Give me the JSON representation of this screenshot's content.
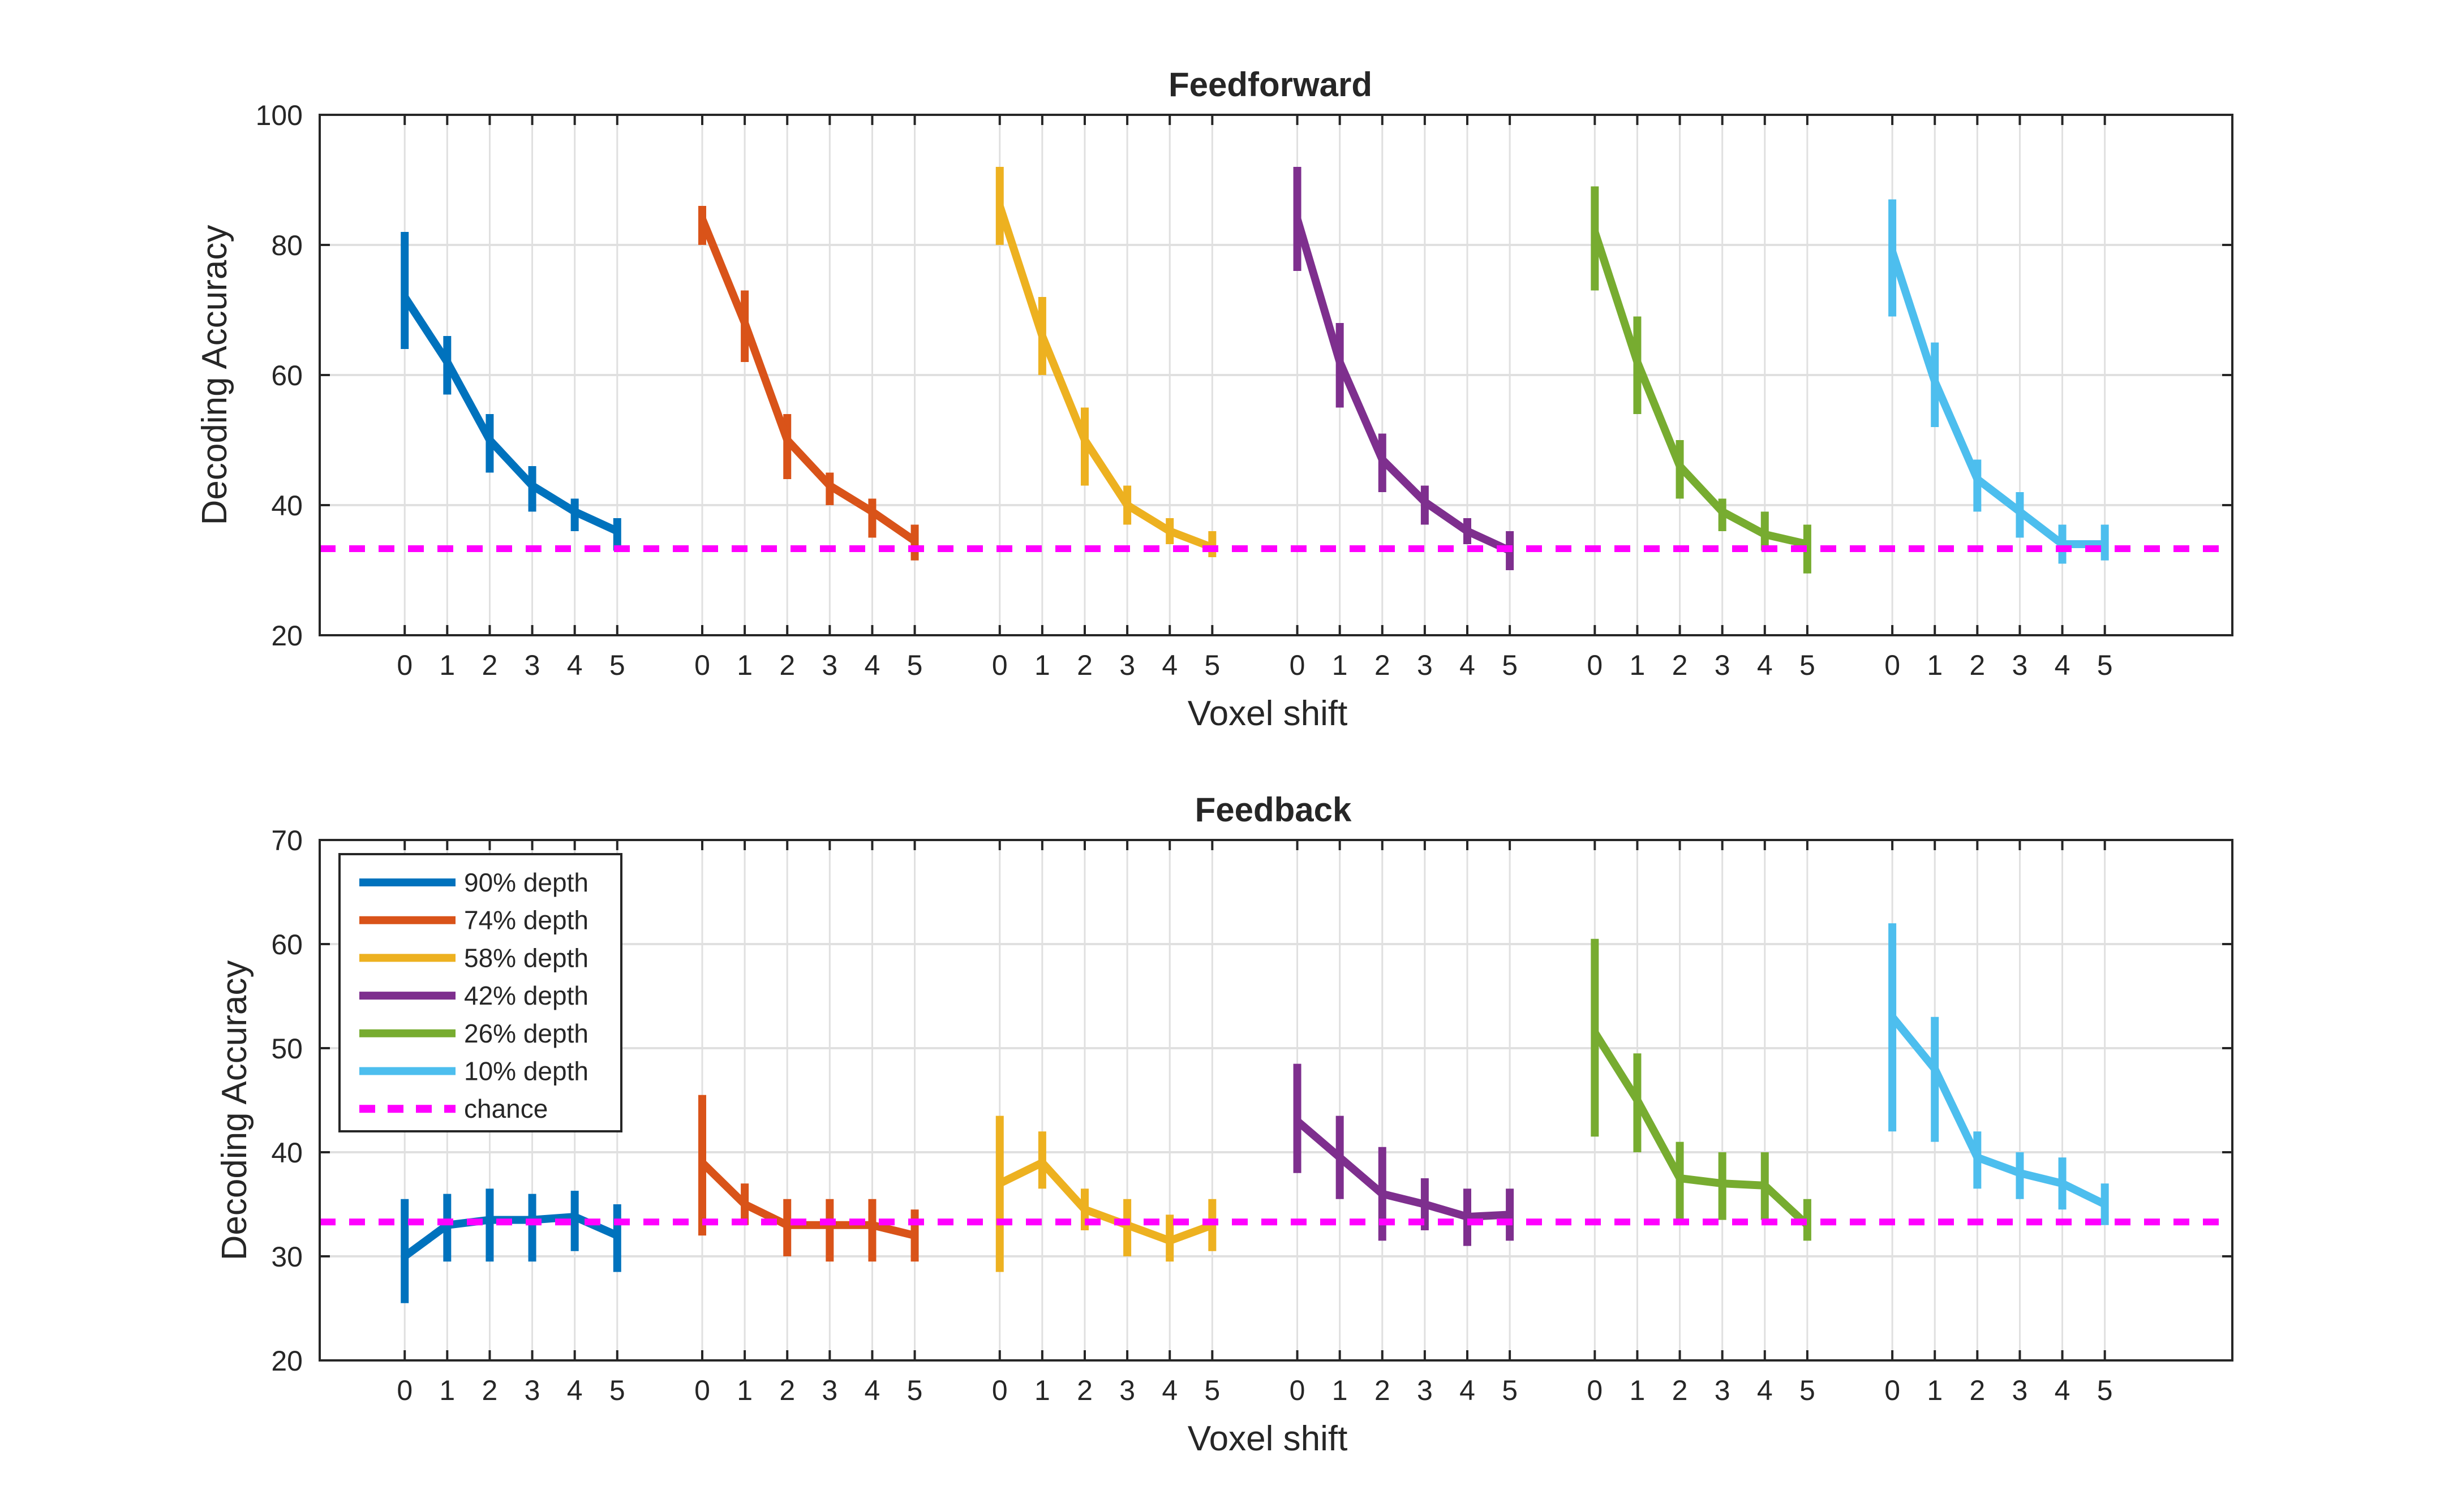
{
  "legend": {
    "placement": "top-left (bottom panel)",
    "entries": [
      {
        "label": "90% depth",
        "color": "#0072BD"
      },
      {
        "label": "74% depth",
        "color": "#D95319"
      },
      {
        "label": "58% depth",
        "color": "#EDB120"
      },
      {
        "label": "42% depth",
        "color": "#7E2F8E"
      },
      {
        "label": "26% depth",
        "color": "#77AC30"
      },
      {
        "label": "10% depth",
        "color": "#4DBEEE"
      },
      {
        "label": "chance",
        "color": "#FF00FF",
        "style": "dashed"
      }
    ]
  },
  "chart_data": [
    {
      "type": "line",
      "title": "Feedforward",
      "xlabel": "Voxel shift",
      "ylabel": "Decoding Accuracy",
      "ylim": [
        20,
        100
      ],
      "yticks": [
        "20",
        "40",
        "60",
        "80",
        "100"
      ],
      "xtick_labels": [
        "0",
        "1",
        "2",
        "3",
        "4",
        "5"
      ],
      "grid": true,
      "chance": 33.3,
      "series": [
        {
          "name": "90% depth",
          "mean": [
            72,
            62,
            50,
            43,
            39,
            36
          ],
          "lower": [
            64,
            57,
            45,
            39,
            36,
            33
          ],
          "upper": [
            82,
            66,
            54,
            46,
            41,
            38
          ]
        },
        {
          "name": "74% depth",
          "mean": [
            84,
            68,
            50,
            43,
            39,
            34.5
          ],
          "lower": [
            80,
            62,
            44,
            40,
            35,
            31.5
          ],
          "upper": [
            86,
            73,
            54,
            45,
            41,
            37
          ]
        },
        {
          "name": "58% depth",
          "mean": [
            86,
            66,
            50,
            40,
            36,
            33.5
          ],
          "lower": [
            80,
            60,
            43,
            37,
            34,
            32
          ],
          "upper": [
            92,
            72,
            55,
            43,
            38,
            36
          ]
        },
        {
          "name": "42% depth",
          "mean": [
            84,
            62,
            47,
            40.5,
            36,
            33
          ],
          "lower": [
            76,
            55,
            42,
            37,
            34,
            30
          ],
          "upper": [
            92,
            68,
            51,
            43,
            38,
            36
          ]
        },
        {
          "name": "26% depth",
          "mean": [
            82,
            62,
            46,
            39,
            35.5,
            34
          ],
          "lower": [
            73,
            54,
            41,
            36,
            33,
            29.5
          ],
          "upper": [
            89,
            69,
            50,
            41,
            39,
            37
          ]
        },
        {
          "name": "10% depth",
          "mean": [
            79,
            59,
            44,
            39,
            34,
            34
          ],
          "lower": [
            69,
            52,
            39,
            35,
            31,
            31.5
          ],
          "upper": [
            87,
            65,
            47,
            42,
            37,
            37
          ]
        }
      ]
    },
    {
      "type": "line",
      "title": "Feedback",
      "xlabel": "Voxel shift",
      "ylabel": "Decoding Accuracy",
      "ylim": [
        20,
        70
      ],
      "yticks": [
        "20",
        "30",
        "40",
        "50",
        "60",
        "70"
      ],
      "xtick_labels": [
        "0",
        "1",
        "2",
        "3",
        "4",
        "5"
      ],
      "grid": true,
      "chance": 33.3,
      "series": [
        {
          "name": "90% depth",
          "mean": [
            30,
            33,
            33.5,
            33.5,
            33.8,
            32
          ],
          "lower": [
            25.5,
            29.5,
            29.5,
            29.5,
            30.5,
            28.5
          ],
          "upper": [
            35.5,
            36,
            36.5,
            36,
            36.3,
            35
          ]
        },
        {
          "name": "74% depth",
          "mean": [
            39,
            35,
            33,
            33,
            33,
            32
          ],
          "lower": [
            32,
            33,
            30,
            29.5,
            29.5,
            29.5
          ],
          "upper": [
            45.5,
            37,
            35.5,
            35.5,
            35.5,
            34.5
          ]
        },
        {
          "name": "58% depth",
          "mean": [
            37,
            39,
            34.5,
            33,
            31.5,
            33
          ],
          "lower": [
            28.5,
            36.5,
            32.5,
            30,
            29.5,
            30.5
          ],
          "upper": [
            43.5,
            42,
            36.5,
            35.5,
            34,
            35.5
          ]
        },
        {
          "name": "42% depth",
          "mean": [
            43,
            39.5,
            36,
            35,
            33.8,
            34
          ],
          "lower": [
            38,
            35.5,
            31.5,
            32.5,
            31,
            31.5
          ],
          "upper": [
            48.5,
            43.5,
            40.5,
            37.5,
            36.5,
            36.5
          ]
        },
        {
          "name": "26% depth",
          "mean": [
            51.5,
            45,
            37.5,
            37,
            36.8,
            33
          ],
          "lower": [
            41.5,
            40,
            33,
            33.5,
            33.5,
            31.5
          ],
          "upper": [
            60.5,
            49.5,
            41,
            40,
            40,
            35.5
          ]
        },
        {
          "name": "10% depth",
          "mean": [
            53,
            48,
            39.5,
            38,
            37,
            35
          ],
          "lower": [
            42,
            41,
            36.5,
            35.5,
            34.5,
            33
          ],
          "upper": [
            62,
            53,
            42,
            40,
            39.5,
            37
          ]
        }
      ]
    }
  ]
}
